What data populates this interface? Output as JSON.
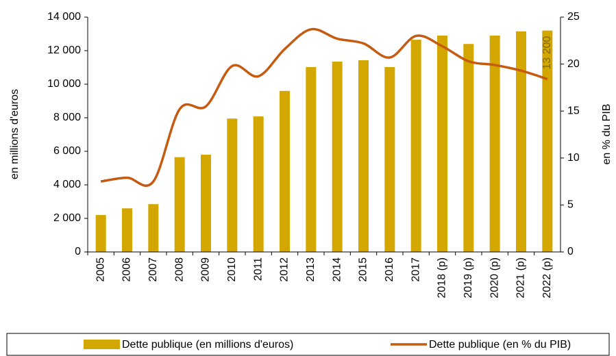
{
  "chart_data": {
    "type": "bar_line",
    "ylabel": "en millions d'euros",
    "y2label": "en % du PIB",
    "categories": [
      "2005",
      "2006",
      "2007",
      "2008",
      "2009",
      "2010",
      "2011",
      "2012",
      "2013",
      "2014",
      "2015",
      "2016",
      "2017",
      "2018 (p)",
      "2019 (p)",
      "2020 (p)",
      "2021 (p)",
      "2022 (p)"
    ],
    "series": [
      {
        "name": "Dette publique (en millions d'euros)",
        "type": "bar",
        "color": "#d4a600",
        "values": [
          2200,
          2600,
          2850,
          5650,
          5800,
          7950,
          8080,
          9600,
          11020,
          11350,
          11430,
          11020,
          12650,
          12900,
          12400,
          12900,
          13150,
          13200
        ],
        "value_labels": [
          null,
          null,
          null,
          null,
          null,
          null,
          null,
          null,
          null,
          null,
          null,
          null,
          null,
          null,
          null,
          null,
          null,
          "13 200"
        ]
      },
      {
        "name": "Dette publique (en % du PIB)",
        "type": "line",
        "color": "#c55a11",
        "axis": "y2",
        "values": [
          7.5,
          7.9,
          7.5,
          15.2,
          15.5,
          19.8,
          18.7,
          21.6,
          23.7,
          22.7,
          22.2,
          20.7,
          23.0,
          21.9,
          20.3,
          19.9,
          19.3,
          18.4
        ]
      }
    ],
    "ylim": [
      0,
      14000
    ],
    "yticks": [
      0,
      {
        "value": 2000,
        "label": "2 000"
      },
      {
        "value": 4000,
        "label": "4 000"
      },
      {
        "value": 6000,
        "label": "6 000"
      },
      {
        "value": 8000,
        "label": "8 000"
      },
      {
        "value": 10000,
        "label": "10 000"
      },
      {
        "value": 12000,
        "label": "12 000"
      },
      {
        "value": 14000,
        "label": "14 000"
      }
    ],
    "y2lim": [
      0,
      25
    ],
    "y2ticks": [
      0,
      5,
      10,
      15,
      20,
      25
    ],
    "legend": "bottom"
  }
}
